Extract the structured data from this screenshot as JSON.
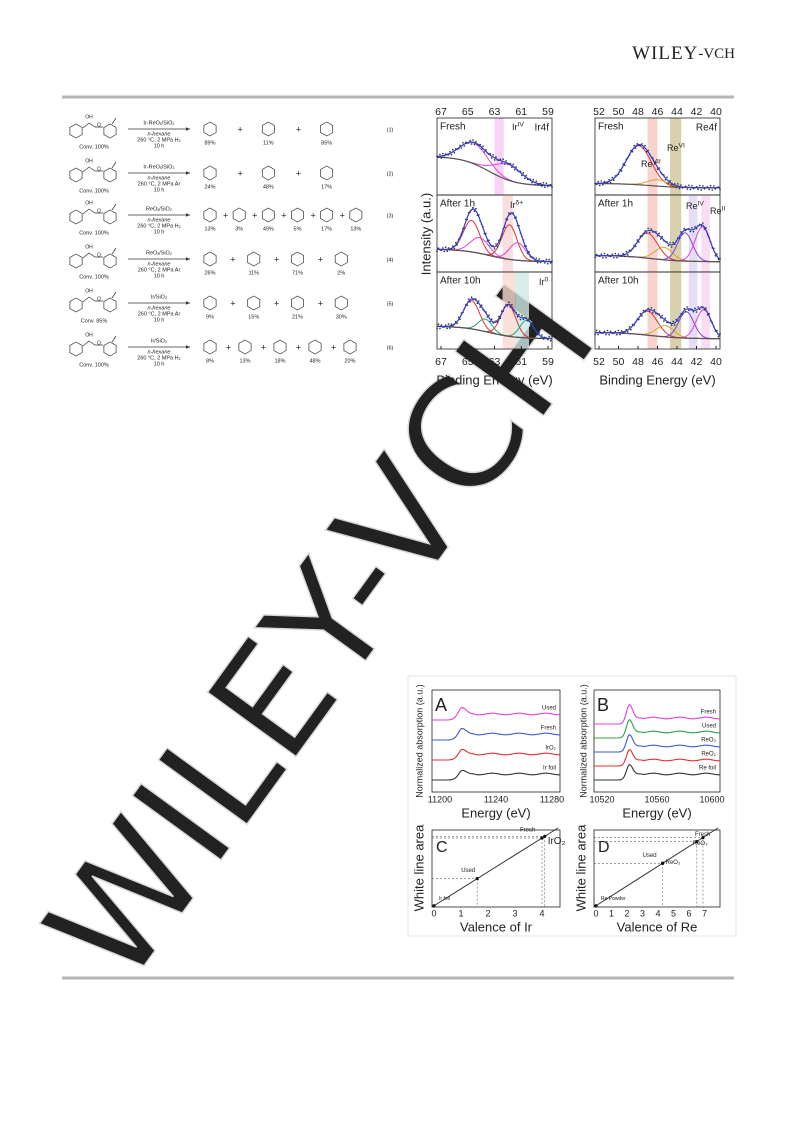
{
  "header": {
    "brand": "WILEY",
    "suffix": "-VCH"
  },
  "watermark": "WILEY-VCH",
  "scheme": {
    "atoms": {
      "hydroxyl": "OH",
      "oxygen": "O"
    },
    "plus": "+",
    "reactions": [
      {
        "catalyst": "Ir-ReOₓ/SiO₂",
        "solvent": "n-hexane",
        "conditions": "260 °C, 2 MPa H₂",
        "time": "10 h",
        "conversion": "Conv. 100%",
        "yields": [
          "89%",
          "11%",
          "85%"
        ],
        "label": "(1)"
      },
      {
        "catalyst": "Ir-ReOₓ/SiO₂",
        "solvent": "n-hexane",
        "conditions": "260 °C, 2 MPa Ar",
        "time": "10 h",
        "conversion": "Conv. 100%",
        "yields": [
          "24%",
          "48%",
          "17%"
        ],
        "label": "(2)"
      },
      {
        "catalyst": "ReOₓ/SiO₂",
        "solvent": "n-hexane",
        "conditions": "260 °C, 2 MPa H₂",
        "time": "10 h",
        "conversion": "Conv. 100%",
        "yields": [
          "13%",
          "3%",
          "49%",
          "5%",
          "17%",
          "13%"
        ],
        "label": "(3)"
      },
      {
        "catalyst": "ReOₓ/SiO₂",
        "solvent": "n-hexane",
        "conditions": "260 °C, 2 MPa Ar",
        "time": "10 h",
        "conversion": "Conv. 100%",
        "yields": [
          "26%",
          "11%",
          "71%",
          "2%"
        ],
        "label": "(4)"
      },
      {
        "catalyst": "Ir/SiO₂",
        "solvent": "n-hexane",
        "conditions": "260 °C, 2 MPa Ar",
        "time": "10 h",
        "conversion": "Conv. 85%",
        "yields": [
          "9%",
          "15%",
          "21%",
          "30%"
        ],
        "label": "(5)"
      },
      {
        "catalyst": "Ir/SiO₂",
        "solvent": "n-hexane",
        "conditions": "260 °C, 2 MPa H₂",
        "time": "10 h",
        "conversion": "Conv. 100%",
        "yields": [
          "8%",
          "13%",
          "18%",
          "48%",
          "20%"
        ],
        "label": "(6)"
      }
    ]
  },
  "xps": {
    "y_label": "Intensity (a.u.)",
    "x_label": "Binding Energy (eV)",
    "panels": [
      {
        "title": "Ir4f",
        "ticks": [
          "67",
          "65",
          "63",
          "61",
          "59"
        ],
        "rows": [
          "Fresh",
          "After 1h",
          "After 10h"
        ],
        "species": [
          {
            "text": "Ir",
            "sup": "IV"
          },
          {
            "text": "Ir",
            "sup": "δ+"
          },
          {
            "text": "Ir",
            "sup": "0"
          }
        ]
      },
      {
        "title": "Re4f",
        "ticks": [
          "52",
          "50",
          "48",
          "46",
          "44",
          "42",
          "40"
        ],
        "rows": [
          "Fresh",
          "After 1h",
          "After 10h"
        ],
        "species": [
          {
            "text": "Re",
            "sup": "VII"
          },
          {
            "text": "Re",
            "sup": "VI"
          },
          {
            "text": "Re",
            "sup": "IV"
          },
          {
            "text": "Re",
            "sup": "II"
          }
        ]
      }
    ]
  },
  "xas": {
    "y_label": "Normalized absorption (a.u.)",
    "x_label": "Energy (eV)",
    "panels": [
      {
        "letter": "A",
        "ticks": [
          "11200",
          "11240",
          "11280"
        ],
        "traces": [
          "Used",
          "Fresh",
          "IrO₂",
          "Ir foil"
        ]
      },
      {
        "letter": "B",
        "ticks": [
          "10520",
          "10560",
          "10600"
        ],
        "traces": [
          "Fresh",
          "Used",
          "ReO₃",
          "ReO₂",
          "Re foil"
        ]
      }
    ]
  },
  "valence": {
    "y_label": "White line area",
    "panels": [
      {
        "letter": "C",
        "x_label": "Valence of Ir",
        "ticks": [
          "0",
          "1",
          "2",
          "3",
          "4"
        ],
        "points": [
          "Ir foil",
          "Used",
          "Fresh",
          "IrO₂"
        ]
      },
      {
        "letter": "D",
        "x_label": "Valence of Re",
        "ticks": [
          "0",
          "1",
          "2",
          "3",
          "4",
          "5",
          "6",
          "7"
        ],
        "points": [
          "Re Powder",
          "Used",
          "ReO₂",
          "ReO₃",
          "Fresh"
        ]
      }
    ]
  }
}
